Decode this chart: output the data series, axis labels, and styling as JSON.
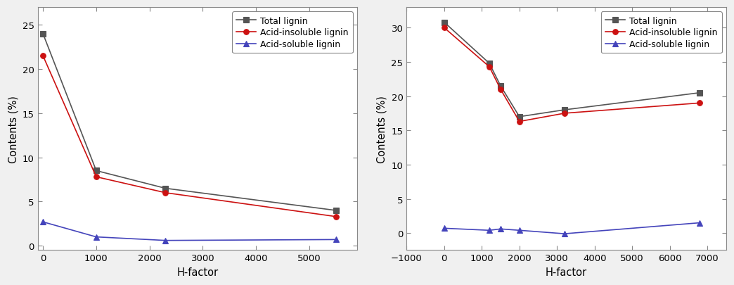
{
  "left": {
    "x": [
      0,
      1000,
      2300,
      5500
    ],
    "total_lignin": [
      24.0,
      8.5,
      6.5,
      4.0
    ],
    "acid_insoluble": [
      21.5,
      7.8,
      6.0,
      3.3
    ],
    "acid_soluble": [
      2.7,
      1.0,
      0.6,
      0.7
    ],
    "xlim": [
      -100,
      5900
    ],
    "ylim": [
      -0.5,
      27
    ],
    "xticks": [
      0,
      1000,
      2000,
      3000,
      4000,
      5000
    ],
    "yticks": [
      0,
      5,
      10,
      15,
      20,
      25
    ],
    "xlabel": "H-factor",
    "ylabel": "Contents (%)"
  },
  "right": {
    "x": [
      0,
      1200,
      1500,
      2000,
      3200,
      6800
    ],
    "total_lignin": [
      30.8,
      24.8,
      21.5,
      17.0,
      18.0,
      20.5
    ],
    "acid_insoluble": [
      30.0,
      24.3,
      21.0,
      16.3,
      17.5,
      19.0
    ],
    "acid_soluble": [
      0.7,
      0.4,
      0.6,
      0.4,
      -0.1,
      1.5
    ],
    "xlim": [
      -1000,
      7500
    ],
    "ylim": [
      -2.5,
      33
    ],
    "xticks": [
      -1000,
      0,
      1000,
      2000,
      3000,
      4000,
      5000,
      6000,
      7000
    ],
    "yticks": [
      0,
      5,
      10,
      15,
      20,
      25,
      30
    ],
    "xlabel": "H-factor",
    "ylabel": "Contents (%)"
  },
  "colors": {
    "total_lignin": "#555555",
    "acid_insoluble": "#cc1111",
    "acid_soluble": "#4444bb"
  },
  "legend_labels": [
    "Total lignin",
    "Acid-insoluble lignin",
    "Acid-soluble lignin"
  ],
  "bg_color": "#f0f0f0",
  "plot_bg_color": "#ffffff"
}
